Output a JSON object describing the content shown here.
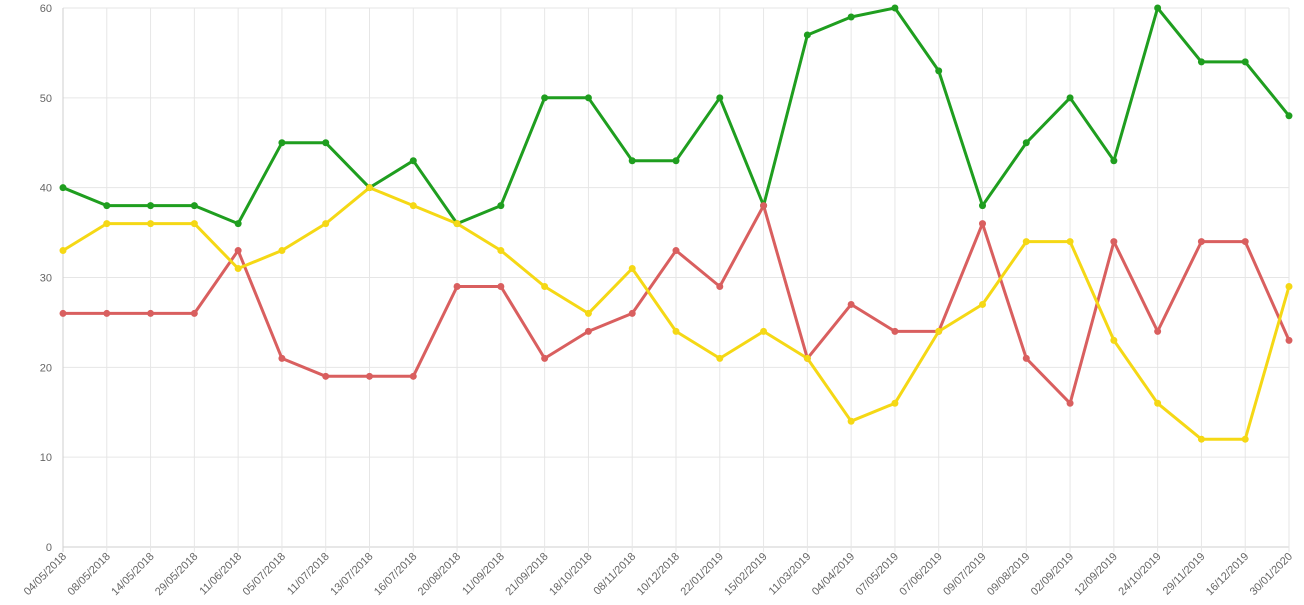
{
  "chart_data": {
    "type": "line",
    "title": "",
    "xlabel": "",
    "ylabel": "",
    "categories": [
      "04/05/2018",
      "08/05/2018",
      "14/05/2018",
      "29/05/2018",
      "11/06/2018",
      "05/07/2018",
      "11/07/2018",
      "13/07/2018",
      "16/07/2018",
      "20/08/2018",
      "11/09/2018",
      "21/09/2018",
      "18/10/2018",
      "08/11/2018",
      "10/12/2018",
      "22/01/2019",
      "15/02/2019",
      "11/03/2019",
      "04/04/2019",
      "07/05/2019",
      "07/06/2019",
      "09/07/2019",
      "09/08/2019",
      "02/09/2019",
      "12/09/2019",
      "24/10/2019",
      "29/11/2019",
      "16/12/2019",
      "30/01/2020"
    ],
    "ylim": [
      0,
      60
    ],
    "yticks": [
      0,
      10,
      20,
      30,
      40,
      50,
      60
    ],
    "grid": true,
    "legend": "none",
    "series": [
      {
        "color": "#1f9e1f",
        "values": [
          40,
          38,
          38,
          38,
          36,
          45,
          45,
          40,
          43,
          36,
          38,
          50,
          50,
          43,
          43,
          50,
          38,
          57,
          59,
          60,
          53,
          38,
          45,
          50,
          43,
          60,
          54,
          54,
          48
        ]
      },
      {
        "color": "#d95f5f",
        "values": [
          26,
          26,
          26,
          26,
          33,
          21,
          19,
          19,
          19,
          29,
          29,
          21,
          24,
          26,
          33,
          29,
          38,
          21,
          27,
          24,
          24,
          36,
          21,
          16,
          34,
          24,
          34,
          34,
          23
        ]
      },
      {
        "color": "#f5d815",
        "values": [
          33,
          36,
          36,
          36,
          31,
          33,
          36,
          40,
          38,
          36,
          33,
          29,
          26,
          31,
          24,
          21,
          24,
          21,
          14,
          16,
          24,
          27,
          34,
          34,
          23,
          16,
          12,
          12,
          29
        ]
      }
    ]
  }
}
